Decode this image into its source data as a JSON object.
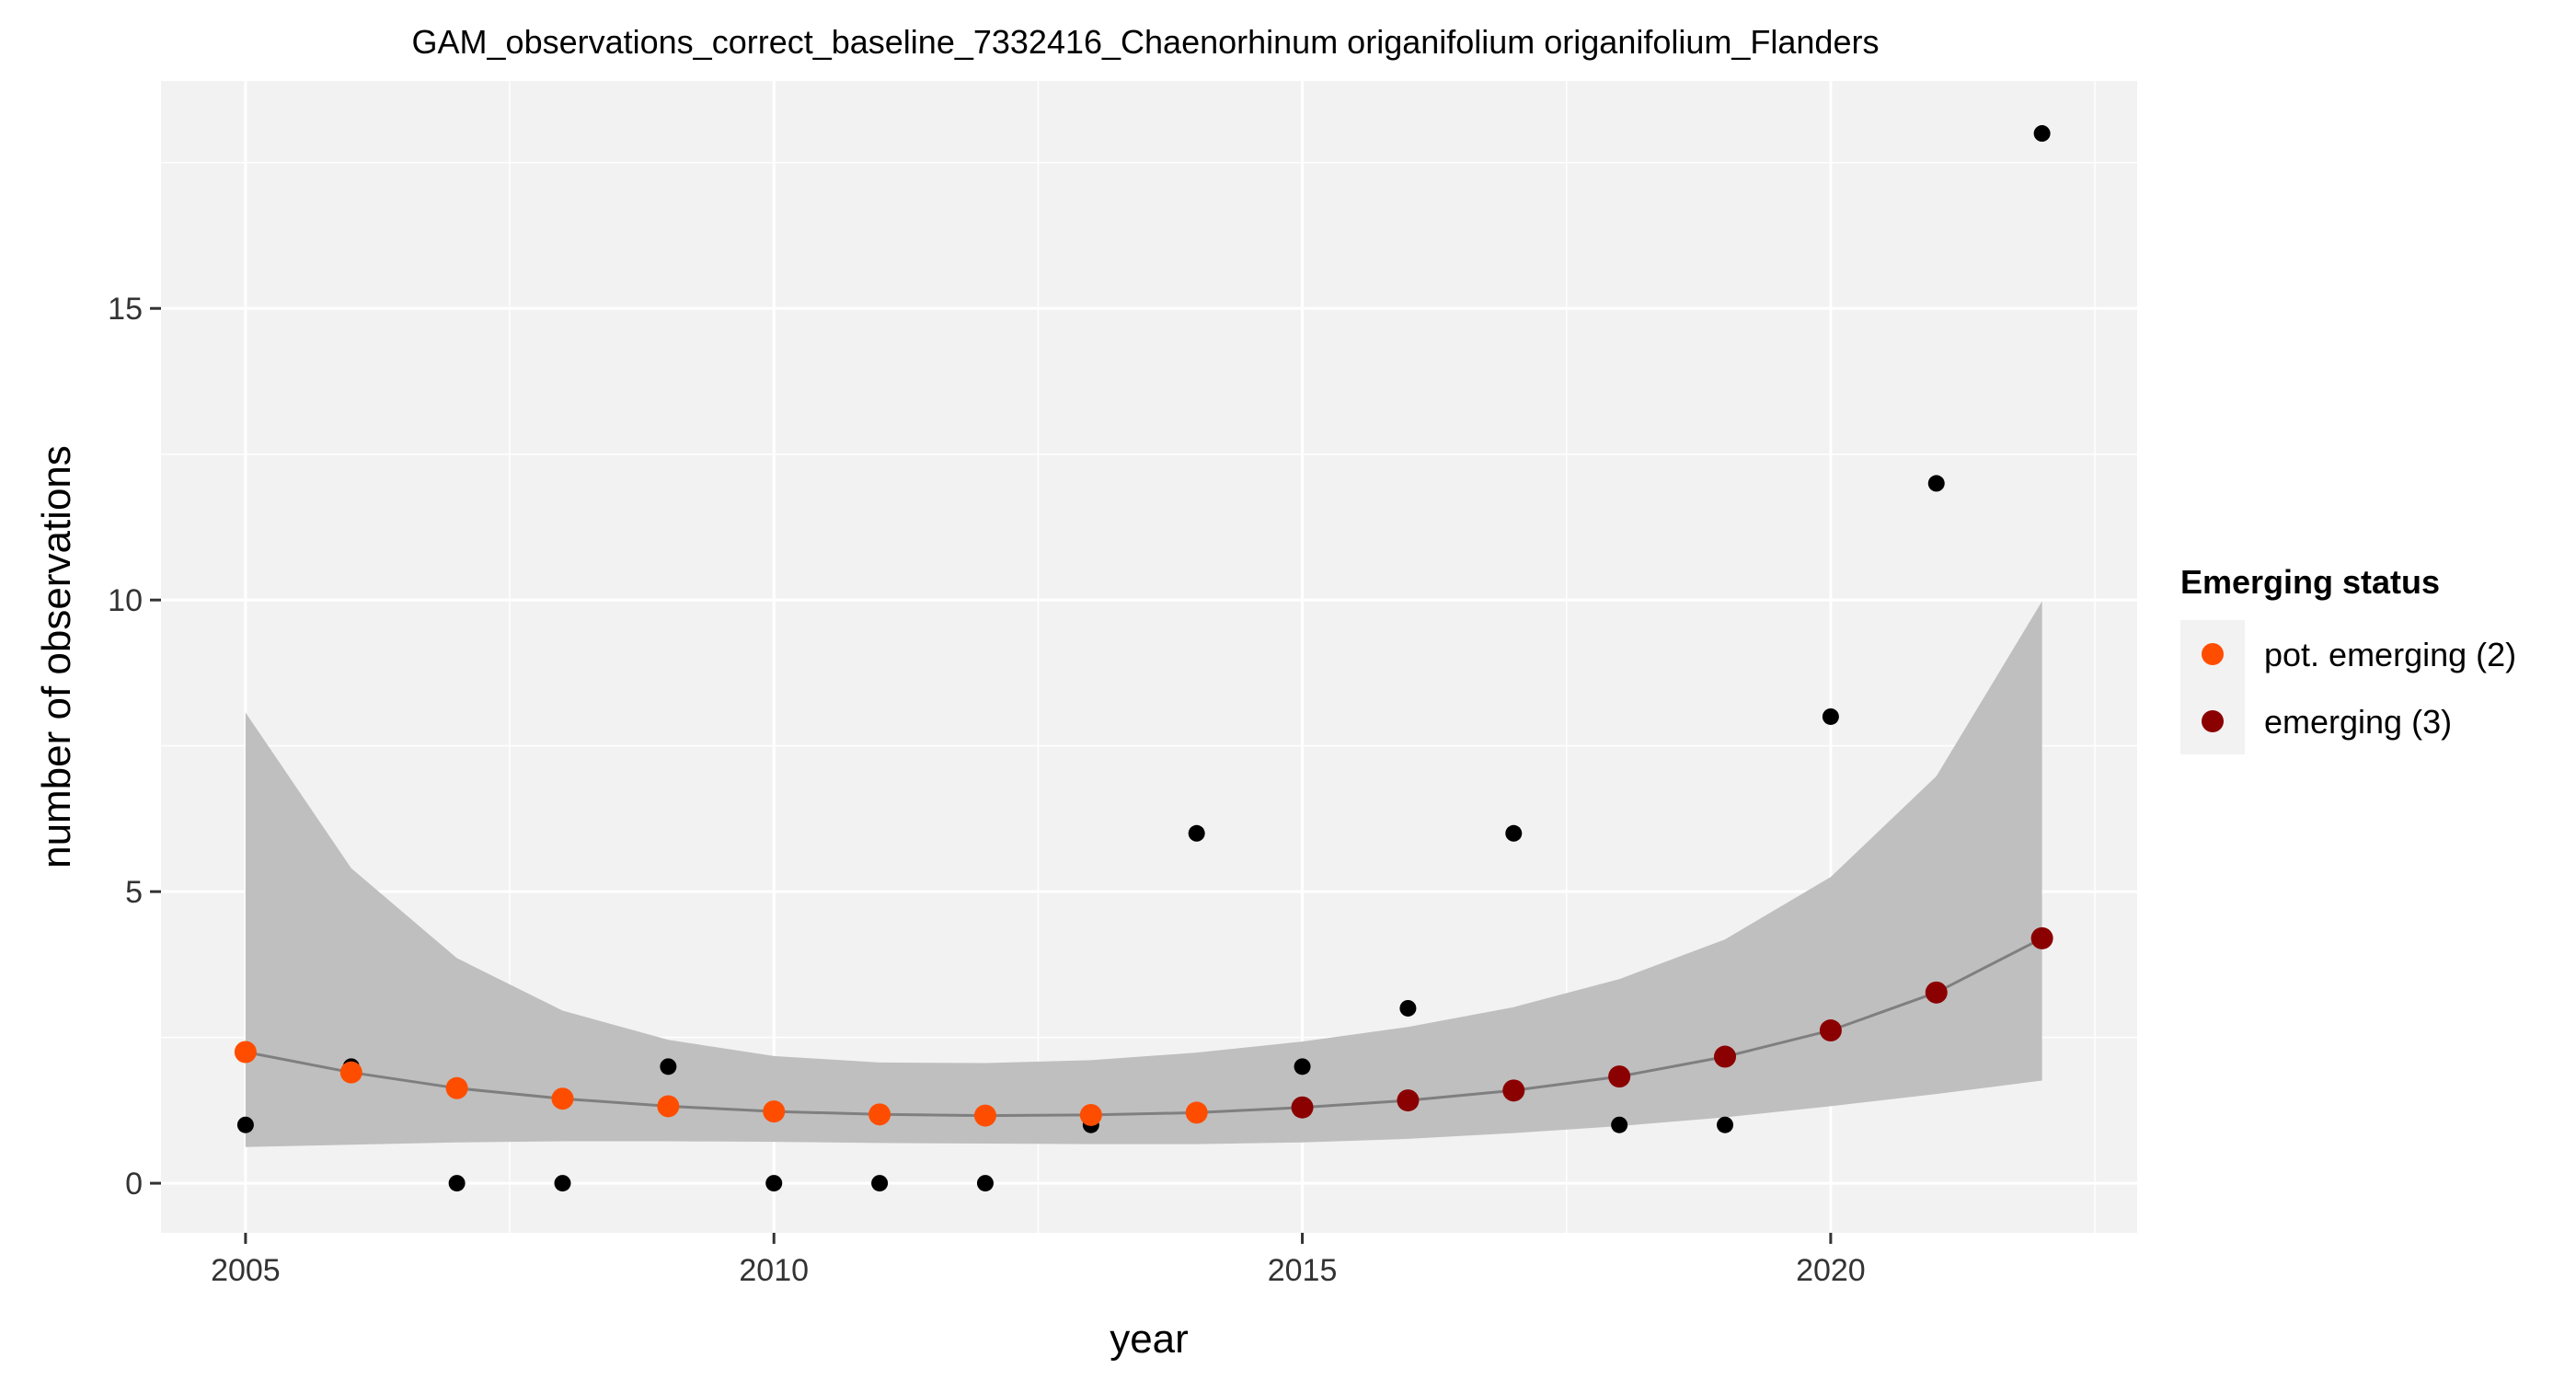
{
  "chart_data": {
    "type": "scatter",
    "title": "GAM_observations_correct_baseline_7332416_Chaenorhinum origanifolium origanifolium_Flanders",
    "xlabel": "year",
    "ylabel": "number of observations",
    "xlim": [
      2004.2,
      2022.9
    ],
    "ylim": [
      -0.85,
      18.9
    ],
    "x_ticks": [
      2005,
      2010,
      2015,
      2020
    ],
    "y_ticks": [
      0,
      5,
      10,
      15
    ],
    "grid": true,
    "legend": {
      "title": "Emerging status",
      "position": "right",
      "entries": [
        {
          "label": "pot. emerging (2)",
          "color": "#ff4d00"
        },
        {
          "label": "emerging (3)",
          "color": "#8b0000"
        }
      ]
    },
    "observed": {
      "color": "#000000",
      "x": [
        2005,
        2006,
        2007,
        2008,
        2009,
        2010,
        2011,
        2012,
        2013,
        2014,
        2015,
        2016,
        2017,
        2018,
        2019,
        2020,
        2021,
        2022
      ],
      "y": [
        1,
        2,
        0,
        0,
        2,
        0,
        0,
        0,
        1,
        6,
        2,
        3,
        6,
        1,
        1,
        8,
        12,
        18
      ]
    },
    "fitted": {
      "line_color": "#7f7f7f",
      "band_color": "#bfbfbf",
      "x": [
        2005,
        2006,
        2007,
        2008,
        2009,
        2010,
        2011,
        2012,
        2013,
        2014,
        2015,
        2016,
        2017,
        2018,
        2019,
        2020,
        2021,
        2022
      ],
      "y": [
        2.25,
        1.9,
        1.63,
        1.45,
        1.32,
        1.23,
        1.18,
        1.16,
        1.17,
        1.21,
        1.3,
        1.42,
        1.59,
        1.83,
        2.17,
        2.62,
        3.27,
        4.2
      ],
      "lower": [
        0.62,
        0.66,
        0.7,
        0.72,
        0.72,
        0.71,
        0.69,
        0.68,
        0.67,
        0.67,
        0.7,
        0.76,
        0.86,
        0.98,
        1.13,
        1.32,
        1.53,
        1.76
      ],
      "upper": [
        8.07,
        5.4,
        3.86,
        2.96,
        2.46,
        2.18,
        2.07,
        2.06,
        2.11,
        2.24,
        2.43,
        2.68,
        3.02,
        3.5,
        4.18,
        5.25,
        6.98,
        9.98
      ],
      "status": [
        2,
        2,
        2,
        2,
        2,
        2,
        2,
        2,
        2,
        2,
        3,
        3,
        3,
        3,
        3,
        3,
        3,
        3
      ]
    }
  }
}
